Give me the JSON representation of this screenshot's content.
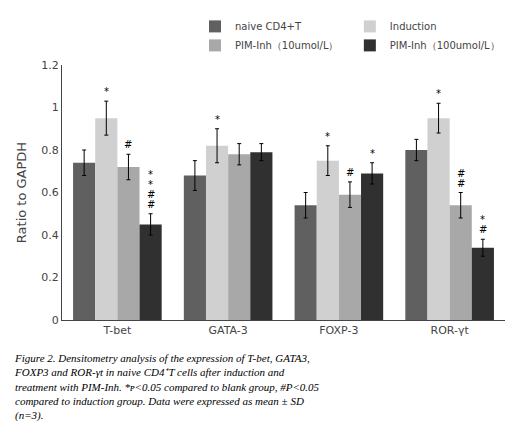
{
  "chart_data": {
    "type": "bar",
    "categories": [
      "T-bet",
      "GATA-3",
      "FOXP-3",
      "ROR-γt"
    ],
    "series": [
      {
        "name": "naive CD4+T",
        "color": "#606060",
        "values": [
          0.74,
          0.68,
          0.54,
          0.8
        ],
        "errors": [
          0.06,
          0.07,
          0.06,
          0.05
        ]
      },
      {
        "name": "Induction",
        "color": "#d0d0d0",
        "values": [
          0.95,
          0.82,
          0.75,
          0.95
        ],
        "errors": [
          0.08,
          0.08,
          0.07,
          0.07
        ]
      },
      {
        "name": "PIM-Inh（10umol/L）",
        "color": "#a8a8a8",
        "values": [
          0.72,
          0.78,
          0.59,
          0.54
        ],
        "errors": [
          0.06,
          0.05,
          0.06,
          0.06
        ]
      },
      {
        "name": "PIM-Inh（100umol/L）",
        "color": "#303030",
        "values": [
          0.45,
          0.79,
          0.69,
          0.34
        ],
        "errors": [
          0.05,
          0.04,
          0.05,
          0.04
        ]
      }
    ],
    "ylabel": "Ratio to GAPDH",
    "ylim": [
      0,
      1.2
    ],
    "yticks": [
      0,
      0.2,
      0.4,
      0.6,
      0.8,
      1,
      1.2
    ],
    "grid": false,
    "legend": "upper right",
    "annotations": [
      {
        "category": "T-bet",
        "series": "Induction",
        "markers": [
          "*"
        ]
      },
      {
        "category": "T-bet",
        "series": "PIM-Inh（10umol/L）",
        "markers": [
          "#"
        ]
      },
      {
        "category": "T-bet",
        "series": "PIM-Inh（100umol/L）",
        "markers": [
          "#",
          "#",
          "*",
          "*"
        ]
      },
      {
        "category": "GATA-3",
        "series": "Induction",
        "markers": [
          "*"
        ]
      },
      {
        "category": "FOXP-3",
        "series": "Induction",
        "markers": [
          "*"
        ]
      },
      {
        "category": "FOXP-3",
        "series": "PIM-Inh（10umol/L）",
        "markers": [
          "#"
        ]
      },
      {
        "category": "FOXP-3",
        "series": "PIM-Inh（100umol/L）",
        "markers": [
          "*"
        ]
      },
      {
        "category": "ROR-γt",
        "series": "Induction",
        "markers": [
          "*"
        ]
      },
      {
        "category": "ROR-γt",
        "series": "PIM-Inh（10umol/L）",
        "markers": [
          "#",
          "#"
        ]
      },
      {
        "category": "ROR-γt",
        "series": "PIM-Inh（100umol/L）",
        "markers": [
          "#",
          "*"
        ]
      }
    ],
    "caption": [
      "Figure 2. Densitometry analysis of the expression of T-bet, GATA3,",
      "FOXP3 and ROR-γt in naive CD4⁺T cells after induction and",
      "treatment with PIM-Inh. *ᴘ<0.05 compared to blank group, #P<0.05",
      "compared to induction group. Data were expressed as mean ± SD",
      "(n=3)."
    ]
  }
}
